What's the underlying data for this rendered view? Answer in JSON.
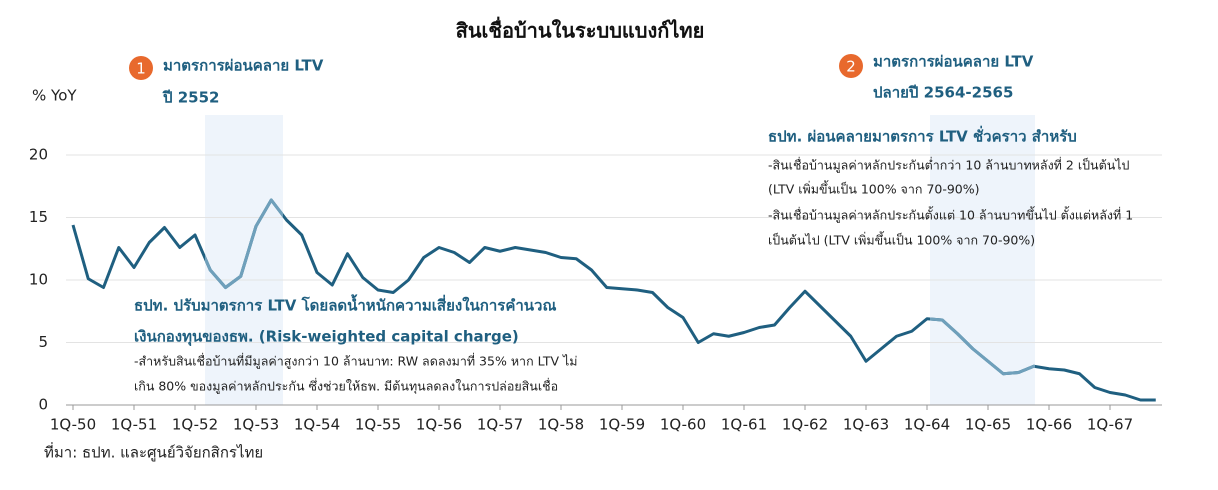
{
  "chart_data": {
    "type": "line",
    "title": "สินเชื่อบ้านในระบบแบงก์ไทย",
    "y_label": "% YoY",
    "source": "ที่มา: ธปท. และศูนย์วิจัยกสิกรไทย",
    "annotations": [
      {
        "badge": "1",
        "lines": [
          "มาตรการผ่อนคลาย LTV",
          "ปี 2552"
        ]
      },
      {
        "badge": "2",
        "lines": [
          "มาตรการผ่อนคลาย LTV",
          "ปลายปี 2564-2565"
        ]
      }
    ],
    "notes": [
      {
        "lines": [
          "ธปท. ปรับมาตรการ LTV โดยลดน้ำหนักความเสี่ยงในการคำนวณ",
          "เงินกองทุนของธพ. (Risk-weighted capital charge)",
          "-สำหรับสินเชื่อบ้านที่มีมูลค่าสูงกว่า 10 ล้านบาท: RW ลดลงมาที่ 35% หาก LTV ไม่",
          "เกิน 80% ของมูลค่าหลักประกัน ซึ่งช่วยให้ธพ. มีต้นทุนลดลงในการปล่อยสินเชื่อ"
        ]
      },
      {
        "lines": [
          "ธปท. ผ่อนคลายมาตรการ LTV ชั่วคราว สำหรับ",
          "-สินเชื่อบ้านมูลค่าหลักประกันต่ำกว่า 10 ล้านบาทหลังที่ 2 เป็นต้นไป",
          "(LTV เพิ่มขึ้นเป็น 100% จาก 70-90%)",
          "-สินเชื่อบ้านมูลค่าหลักประกันตั้งแต่ 10 ล้านบาทขึ้นไป ตั้งแต่หลังที่ 1",
          "เป็นต้นไป (LTV เพิ่มขึ้นเป็น 100% จาก 70-90%)"
        ]
      }
    ],
    "categories": [
      "1Q-50",
      null,
      null,
      null,
      "1Q-51",
      null,
      null,
      null,
      "1Q-52",
      null,
      null,
      null,
      "1Q-53",
      null,
      null,
      null,
      "1Q-54",
      null,
      null,
      null,
      "1Q-55",
      null,
      null,
      null,
      "1Q-56",
      null,
      null,
      null,
      "1Q-57",
      null,
      null,
      null,
      "1Q-58",
      null,
      null,
      null,
      "1Q-59",
      null,
      null,
      null,
      "1Q-60",
      null,
      null,
      null,
      "1Q-61",
      null,
      null,
      null,
      "1Q-62",
      null,
      null,
      null,
      "1Q-63",
      null,
      null,
      null,
      "1Q-64",
      null,
      null,
      null,
      "1Q-65",
      null,
      null,
      null,
      "1Q-66",
      null,
      null,
      null,
      "1Q-67",
      null,
      null,
      null
    ],
    "series": [
      {
        "name": "สินเชื่อบ้าน",
        "color": "#1f5f80",
        "highlight_color": "#6fa0bb",
        "values": [
          14.4,
          10.1,
          9.4,
          12.6,
          11.0,
          13.0,
          14.2,
          12.6,
          13.6,
          10.8,
          9.4,
          10.3,
          14.3,
          16.4,
          14.8,
          13.6,
          10.6,
          9.6,
          12.1,
          10.2,
          9.2,
          9.0,
          10.0,
          11.8,
          12.6,
          12.2,
          11.4,
          12.6,
          12.3,
          12.6,
          12.4,
          12.2,
          11.8,
          11.7,
          10.8,
          9.4,
          9.3,
          9.2,
          9.0,
          7.8,
          7.0,
          5.0,
          5.7,
          5.5,
          5.8,
          6.2,
          6.4,
          7.8,
          9.1,
          7.9,
          6.7,
          5.5,
          3.5,
          4.5,
          5.5,
          5.9,
          6.9,
          6.8,
          5.7,
          4.5,
          3.5,
          2.5,
          2.6,
          3.1,
          2.9,
          2.8,
          2.5,
          1.4,
          1.0,
          0.8,
          0.4,
          0.4
        ]
      }
    ],
    "ylim": [
      0,
      23
    ],
    "yticks": [
      0,
      5,
      10,
      15,
      20
    ],
    "grid": true
  }
}
